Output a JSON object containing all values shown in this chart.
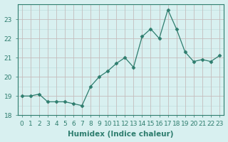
{
  "x": [
    0,
    1,
    2,
    3,
    4,
    5,
    6,
    7,
    8,
    9,
    10,
    11,
    12,
    13,
    14,
    15,
    16,
    17,
    18,
    19,
    20,
    21,
    22,
    23
  ],
  "y": [
    19.0,
    19.0,
    19.1,
    18.7,
    18.7,
    18.7,
    18.6,
    18.5,
    19.5,
    20.0,
    20.3,
    20.7,
    21.0,
    20.5,
    22.1,
    22.5,
    22.0,
    23.5,
    22.5,
    21.3,
    20.8,
    20.9,
    20.8,
    21.1
  ],
  "line_color": "#2e7d6e",
  "marker": "D",
  "marker_size": 2.5,
  "bg_color": "#d8f0f0",
  "grid_color": "#c0dede",
  "grid_color_major": "#c8b8b8",
  "xlabel": "Humidex (Indice chaleur)",
  "ylabel": "",
  "xlim": [
    -0.5,
    23.5
  ],
  "ylim": [
    18.0,
    23.8
  ],
  "yticks": [
    18,
    19,
    20,
    21,
    22,
    23
  ],
  "xtick_labels": [
    "0",
    "1",
    "2",
    "3",
    "4",
    "5",
    "6",
    "7",
    "8",
    "9",
    "10",
    "11",
    "12",
    "13",
    "14",
    "15",
    "16",
    "17",
    "18",
    "19",
    "20",
    "21",
    "22",
    "23"
  ],
  "tick_fontsize": 6.5,
  "xlabel_fontsize": 7.5
}
